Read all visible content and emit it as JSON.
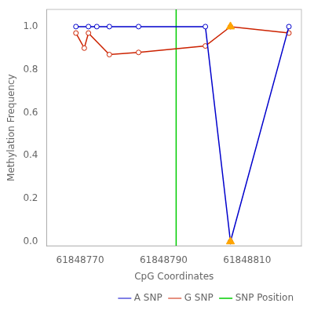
{
  "chart_data": {
    "type": "line",
    "xlabel": "CpG Coordinates",
    "ylabel": "Methylation Frequency",
    "xlim": [
      61848762,
      61848823
    ],
    "xticks": [
      61848770,
      61848790,
      61848810
    ],
    "ylim": [
      -0.02,
      1.08
    ],
    "yticks": [
      {
        "value": 0.0,
        "label": "0.0"
      },
      0.2,
      0.4,
      0.6,
      0.8,
      {
        "value": 1.0,
        "label": "1.0"
      }
    ],
    "grid": false,
    "legend": "lower right",
    "series": [
      {
        "name": "A SNP",
        "type": "line",
        "color": "#0000CC",
        "marker": "circle",
        "x": [
          61848769,
          61848772,
          61848774,
          61848777,
          61848784,
          61848800,
          61848806,
          61848820
        ],
        "values": [
          1.0,
          1.0,
          1.0,
          1.0,
          1.0,
          1.0,
          0.0,
          1.0
        ]
      },
      {
        "name": "G SNP",
        "type": "line",
        "color": "#CC2200",
        "marker": "circle",
        "x": [
          61848769,
          61848771,
          61848772,
          61848777,
          61848784,
          61848800,
          61848806,
          61848820
        ],
        "values": [
          0.97,
          0.9,
          0.97,
          0.87,
          0.88,
          0.91,
          1.0,
          0.97
        ]
      },
      {
        "name": "SNP Position",
        "type": "vline",
        "color": "#00CC00",
        "x": 61848793
      },
      {
        "type": "scatter",
        "color": "#FFA500",
        "marker": "triangle",
        "x": [
          61848806,
          61848806
        ],
        "values": [
          1.0,
          0.0
        ]
      }
    ]
  }
}
